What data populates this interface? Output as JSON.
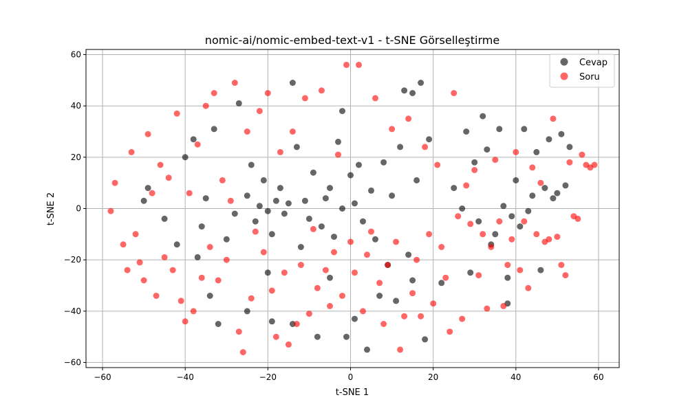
{
  "chart_data": {
    "type": "scatter",
    "title": "nomic-ai/nomic-embed-text-v1 - t-SNE Görselleştirme",
    "xlabel": "t-SNE 1",
    "ylabel": "t-SNE 2",
    "xlim": [
      -64,
      65
    ],
    "ylim": [
      -62,
      62
    ],
    "xticks": [
      -60,
      -40,
      -20,
      0,
      20,
      40,
      60
    ],
    "yticks": [
      -60,
      -40,
      -20,
      0,
      20,
      40,
      60
    ],
    "xtick_labels": [
      "−60",
      "−40",
      "−20",
      "0",
      "20",
      "40",
      "60"
    ],
    "ytick_labels": [
      "−60",
      "−40",
      "−20",
      "0",
      "20",
      "40",
      "60"
    ],
    "grid": true,
    "legend_position": "top-right",
    "series": [
      {
        "name": "Cevap",
        "color": "#000000",
        "opacity": 0.6,
        "points": [
          [
            -50,
            3
          ],
          [
            -49,
            8
          ],
          [
            -45,
            -4
          ],
          [
            -42,
            -14
          ],
          [
            -40,
            20
          ],
          [
            -38,
            27
          ],
          [
            -36,
            -7
          ],
          [
            -35,
            4
          ],
          [
            -34,
            -34
          ],
          [
            -33,
            31
          ],
          [
            -32,
            -45
          ],
          [
            -30,
            -12
          ],
          [
            -28,
            -2
          ],
          [
            -27,
            41
          ],
          [
            -25,
            5
          ],
          [
            -25,
            -40
          ],
          [
            -24,
            17
          ],
          [
            -23,
            -5
          ],
          [
            -22,
            1
          ],
          [
            -21,
            11
          ],
          [
            -20,
            -1
          ],
          [
            -19,
            -44
          ],
          [
            -19,
            -10
          ],
          [
            -18,
            3
          ],
          [
            -17,
            8
          ],
          [
            -16,
            -2
          ],
          [
            -15,
            2
          ],
          [
            -14,
            49
          ],
          [
            -14,
            -45
          ],
          [
            -13,
            24
          ],
          [
            -12,
            -15
          ],
          [
            -11,
            3
          ],
          [
            -10,
            -4
          ],
          [
            -9,
            14
          ],
          [
            -8,
            -50
          ],
          [
            -7,
            -7
          ],
          [
            -6,
            4
          ],
          [
            -5,
            8
          ],
          [
            -4,
            -11
          ],
          [
            -3,
            26
          ],
          [
            -2,
            0
          ],
          [
            -2,
            38
          ],
          [
            -1,
            -50
          ],
          [
            0,
            13
          ],
          [
            1,
            -43
          ],
          [
            1,
            2
          ],
          [
            2,
            17
          ],
          [
            3,
            -5
          ],
          [
            4,
            -55
          ],
          [
            5,
            7
          ],
          [
            6,
            -12
          ],
          [
            7,
            -34
          ],
          [
            8,
            18
          ],
          [
            9,
            -22
          ],
          [
            10,
            5
          ],
          [
            11,
            -36
          ],
          [
            12,
            24
          ],
          [
            13,
            46
          ],
          [
            14,
            -18
          ],
          [
            15,
            45
          ],
          [
            16,
            11
          ],
          [
            17,
            49
          ],
          [
            18,
            -51
          ],
          [
            19,
            27
          ],
          [
            22,
            -29
          ],
          [
            25,
            8
          ],
          [
            27,
            0
          ],
          [
            28,
            30
          ],
          [
            29,
            -25
          ],
          [
            30,
            18
          ],
          [
            31,
            -5
          ],
          [
            32,
            36
          ],
          [
            33,
            23
          ],
          [
            34,
            -14
          ],
          [
            35,
            -10
          ],
          [
            36,
            31
          ],
          [
            37,
            1
          ],
          [
            38,
            -37
          ],
          [
            39,
            -3
          ],
          [
            40,
            11
          ],
          [
            41,
            -7
          ],
          [
            42,
            31
          ],
          [
            43,
            -1
          ],
          [
            44,
            5
          ],
          [
            45,
            22
          ],
          [
            46,
            -24
          ],
          [
            47,
            8
          ],
          [
            48,
            27
          ],
          [
            49,
            4
          ],
          [
            50,
            6
          ],
          [
            51,
            29
          ],
          [
            52,
            9
          ],
          [
            53,
            24
          ],
          [
            38,
            -27
          ],
          [
            -37,
            -19
          ],
          [
            -20,
            -25
          ],
          [
            -5,
            -27
          ],
          [
            15,
            -28
          ]
        ]
      },
      {
        "name": "Soru",
        "color": "#ff0000",
        "opacity": 0.6,
        "points": [
          [
            -58,
            -1
          ],
          [
            -57,
            10
          ],
          [
            -55,
            -14
          ],
          [
            -54,
            -24
          ],
          [
            -53,
            22
          ],
          [
            -52,
            -10
          ],
          [
            -51,
            -21
          ],
          [
            -50,
            -28
          ],
          [
            -49,
            29
          ],
          [
            -48,
            6
          ],
          [
            -47,
            -34
          ],
          [
            -46,
            17
          ],
          [
            -45,
            -19
          ],
          [
            -44,
            12
          ],
          [
            -43,
            -24
          ],
          [
            -42,
            37
          ],
          [
            -41,
            -36
          ],
          [
            -40,
            -44
          ],
          [
            -39,
            6
          ],
          [
            -38,
            -40
          ],
          [
            -37,
            25
          ],
          [
            -36,
            -27
          ],
          [
            -35,
            40
          ],
          [
            -34,
            -15
          ],
          [
            -33,
            45
          ],
          [
            -32,
            -28
          ],
          [
            -31,
            11
          ],
          [
            -30,
            -20
          ],
          [
            -29,
            3
          ],
          [
            -28,
            49
          ],
          [
            -27,
            -48
          ],
          [
            -26,
            -56
          ],
          [
            -25,
            30
          ],
          [
            -24,
            -35
          ],
          [
            -23,
            -9
          ],
          [
            -22,
            38
          ],
          [
            -21,
            -17
          ],
          [
            -20,
            45
          ],
          [
            -19,
            -32
          ],
          [
            -18,
            -50
          ],
          [
            -17,
            22
          ],
          [
            -16,
            -25
          ],
          [
            -15,
            -53
          ],
          [
            -14,
            30
          ],
          [
            -13,
            -45
          ],
          [
            -12,
            -22
          ],
          [
            -11,
            43
          ],
          [
            -10,
            -41
          ],
          [
            -9,
            -8
          ],
          [
            -8,
            -31
          ],
          [
            -7,
            46
          ],
          [
            -6,
            -24
          ],
          [
            -5,
            -38
          ],
          [
            -4,
            -17
          ],
          [
            -3,
            21
          ],
          [
            -2,
            -34
          ],
          [
            -1,
            56
          ],
          [
            0,
            -13
          ],
          [
            1,
            -25
          ],
          [
            2,
            56
          ],
          [
            3,
            -40
          ],
          [
            4,
            -18
          ],
          [
            5,
            -9
          ],
          [
            6,
            43
          ],
          [
            7,
            -29
          ],
          [
            8,
            -45
          ],
          [
            9,
            -22
          ],
          [
            10,
            31
          ],
          [
            11,
            -13
          ],
          [
            12,
            -55
          ],
          [
            13,
            -42
          ],
          [
            14,
            35
          ],
          [
            15,
            -33
          ],
          [
            16,
            -20
          ],
          [
            17,
            -42
          ],
          [
            18,
            24
          ],
          [
            19,
            -10
          ],
          [
            20,
            -37
          ],
          [
            21,
            17
          ],
          [
            22,
            -15
          ],
          [
            23,
            -27
          ],
          [
            24,
            -48
          ],
          [
            25,
            45
          ],
          [
            26,
            -3
          ],
          [
            27,
            -43
          ],
          [
            28,
            9
          ],
          [
            29,
            -6
          ],
          [
            30,
            15
          ],
          [
            31,
            -26
          ],
          [
            32,
            -10
          ],
          [
            33,
            -39
          ],
          [
            34,
            -15
          ],
          [
            35,
            19
          ],
          [
            36,
            -5
          ],
          [
            37,
            -38
          ],
          [
            38,
            -22
          ],
          [
            39,
            -12
          ],
          [
            40,
            22
          ],
          [
            41,
            -24
          ],
          [
            42,
            -5
          ],
          [
            43,
            -31
          ],
          [
            44,
            16
          ],
          [
            45,
            -10
          ],
          [
            46,
            10
          ],
          [
            47,
            -13
          ],
          [
            48,
            -12
          ],
          [
            49,
            35
          ],
          [
            50,
            -11
          ],
          [
            51,
            -22
          ],
          [
            52,
            -26
          ],
          [
            53,
            18
          ],
          [
            54,
            -3
          ],
          [
            55,
            -4
          ],
          [
            56,
            21
          ],
          [
            57,
            17
          ],
          [
            58,
            16
          ],
          [
            59,
            17
          ]
        ]
      }
    ]
  }
}
